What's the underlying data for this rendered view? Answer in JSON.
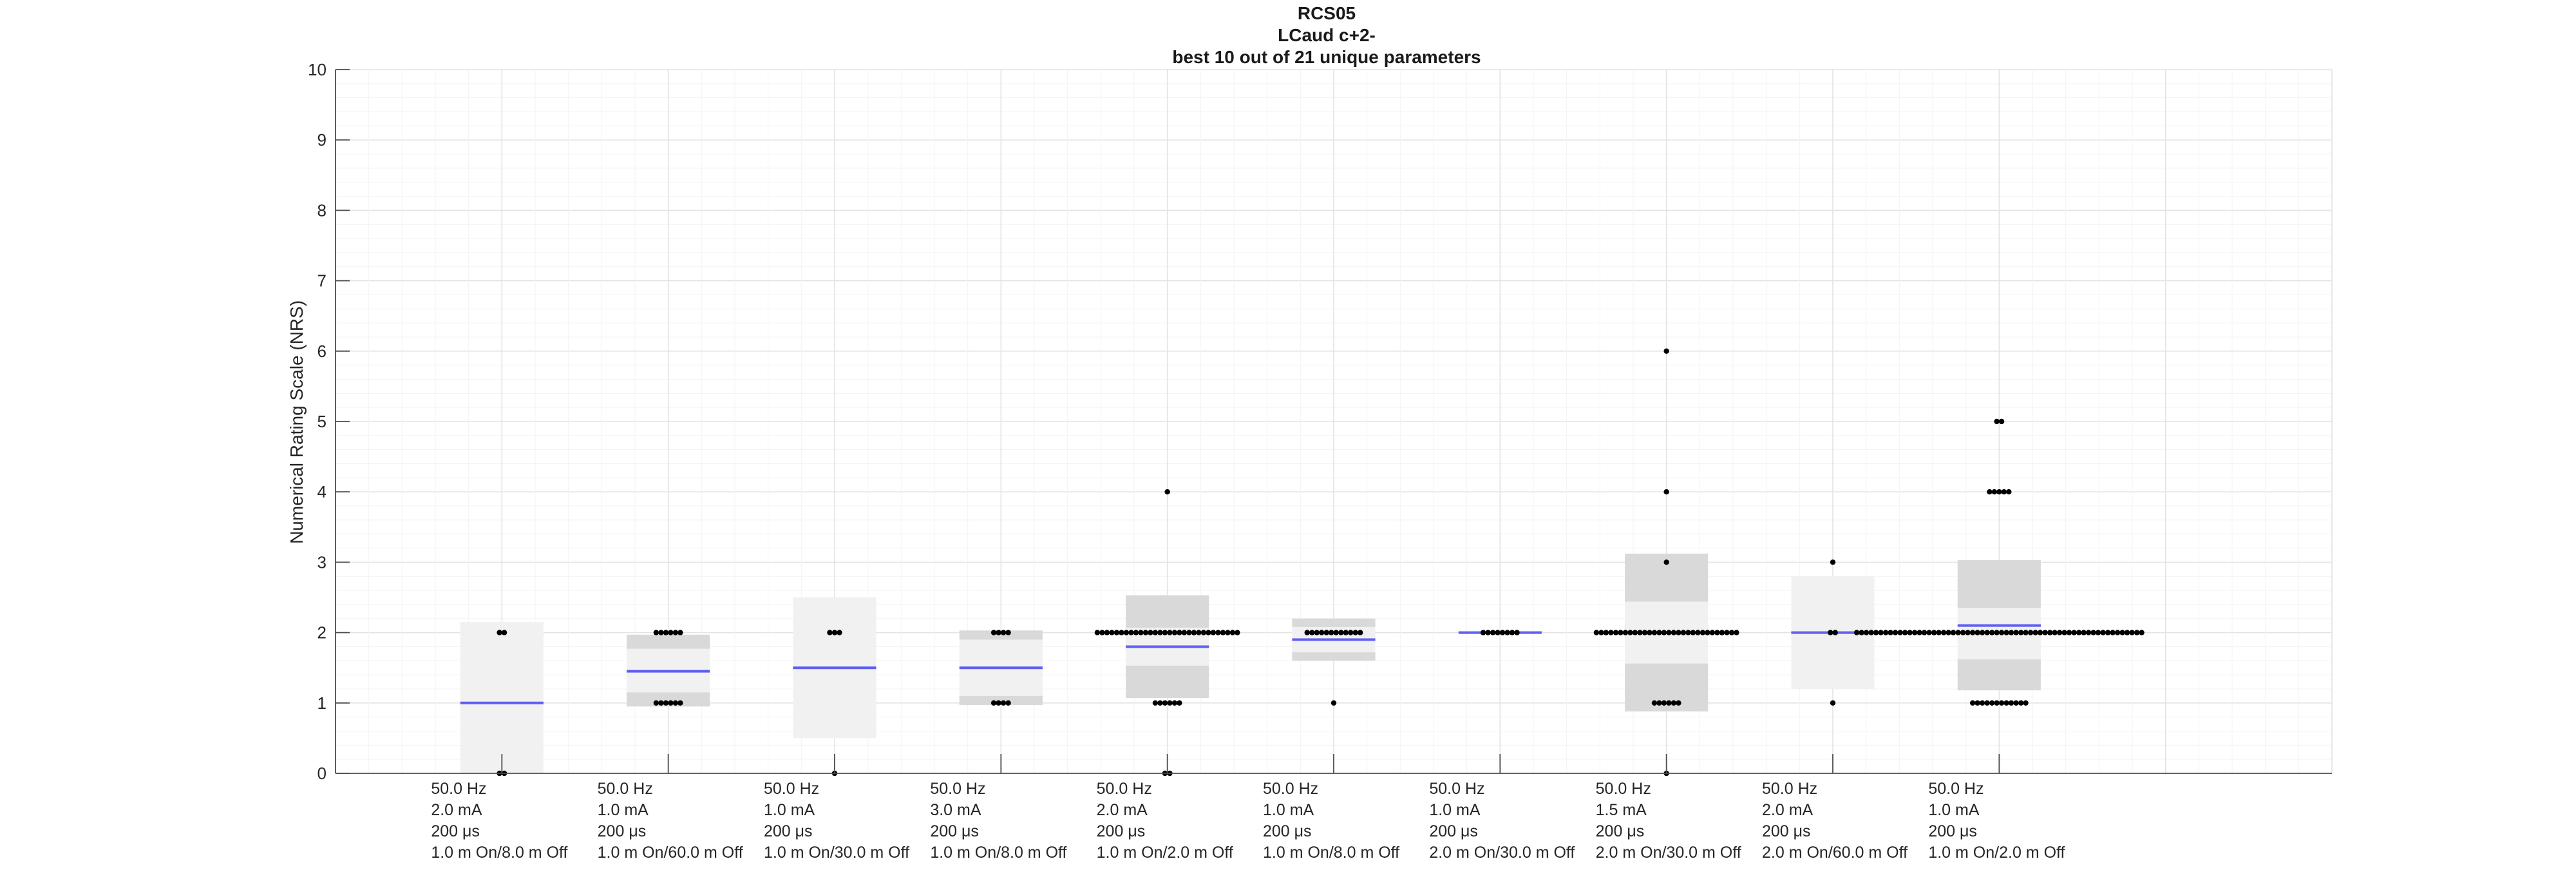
{
  "chart_data": {
    "type": "box",
    "title": [
      "RCS05",
      "LCaud c+2-",
      "best 10 out of 21 unique parameters"
    ],
    "ylabel": "Numerical Rating Scale (NRS)",
    "ylim": [
      0,
      10
    ],
    "yticks": [
      "0",
      "1",
      "2",
      "3",
      "4",
      "5",
      "6",
      "7",
      "8",
      "9",
      "10"
    ],
    "xlim": [
      0,
      12
    ],
    "grid": true,
    "categories": [
      [
        "50.0 Hz",
        "2.0 mA",
        "200 μs",
        "1.0 m On/8.0 m Off"
      ],
      [
        "50.0 Hz",
        "1.0 mA",
        "200 μs",
        "1.0 m On/60.0 m Off"
      ],
      [
        "50.0 Hz",
        "1.0 mA",
        "200 μs",
        "1.0 m On/30.0 m Off"
      ],
      [
        "50.0 Hz",
        "3.0 mA",
        "200 μs",
        "1.0 m On/8.0 m Off"
      ],
      [
        "50.0 Hz",
        "2.0 mA",
        "200 μs",
        "1.0 m On/2.0 m Off"
      ],
      [
        "50.0 Hz",
        "1.0 mA",
        "200 μs",
        "1.0 m On/8.0 m Off"
      ],
      [
        "50.0 Hz",
        "1.0 mA",
        "200 μs",
        "2.0 m On/30.0 m Off"
      ],
      [
        "50.0 Hz",
        "1.5 mA",
        "200 μs",
        "2.0 m On/30.0 m Off"
      ],
      [
        "50.0 Hz",
        "2.0 mA",
        "200 μs",
        "2.0 m On/60.0 m Off"
      ],
      [
        "50.0 Hz",
        "1.0 mA",
        "200 μs",
        "1.0 m On/2.0 m Off"
      ]
    ],
    "boxes": [
      {
        "mean": 1.0,
        "ci": [
          0.0,
          2.15
        ],
        "sd": null,
        "points": [
          {
            "y": 2,
            "n": 2
          },
          {
            "y": 0,
            "n": 2
          }
        ]
      },
      {
        "mean": 1.45,
        "ci": [
          0.95,
          1.97
        ],
        "sd": [
          1.15,
          1.77
        ],
        "points": [
          {
            "y": 2,
            "n": 6
          },
          {
            "y": 1,
            "n": 6
          }
        ]
      },
      {
        "mean": 1.5,
        "ci": [
          0.5,
          2.5
        ],
        "sd": null,
        "points": [
          {
            "y": 2,
            "n": 3
          },
          {
            "y": 0,
            "n": 1
          }
        ]
      },
      {
        "mean": 1.5,
        "ci": [
          0.97,
          2.03
        ],
        "sd": [
          1.1,
          1.9
        ],
        "points": [
          {
            "y": 2,
            "n": 4
          },
          {
            "y": 1,
            "n": 4
          }
        ]
      },
      {
        "mean": 1.8,
        "ci": [
          1.07,
          2.53
        ],
        "sd": [
          1.53,
          2.07
        ],
        "points": [
          {
            "y": 4,
            "n": 1
          },
          {
            "y": 2,
            "n": 30
          },
          {
            "y": 1,
            "n": 6
          },
          {
            "y": 0,
            "n": 2
          }
        ]
      },
      {
        "mean": 1.9,
        "ci": [
          1.6,
          2.2
        ],
        "sd": [
          1.72,
          2.08
        ],
        "points": [
          {
            "y": 2,
            "n": 12
          },
          {
            "y": 1,
            "n": 1
          }
        ]
      },
      {
        "mean": 2.0,
        "ci": [
          2.0,
          2.0
        ],
        "sd": null,
        "points": [
          {
            "y": 2,
            "n": 8
          }
        ]
      },
      {
        "mean": 2.0,
        "ci": [
          0.88,
          3.12
        ],
        "sd": [
          1.56,
          2.44
        ],
        "points": [
          {
            "y": 6,
            "n": 1
          },
          {
            "y": 4,
            "n": 1
          },
          {
            "y": 3,
            "n": 1
          },
          {
            "y": 2,
            "n": 30
          },
          {
            "y": 1,
            "n": 6
          },
          {
            "y": 0,
            "n": 1
          }
        ]
      },
      {
        "mean": 2.0,
        "ci": [
          1.2,
          2.8
        ],
        "sd": null,
        "points": [
          {
            "y": 3,
            "n": 1
          },
          {
            "y": 2,
            "n": 2
          },
          {
            "y": 1,
            "n": 1
          }
        ]
      },
      {
        "mean": 2.1,
        "ci": [
          1.18,
          3.03
        ],
        "sd": [
          1.62,
          2.35
        ],
        "points": [
          {
            "y": 5,
            "n": 2
          },
          {
            "y": 4,
            "n": 5
          },
          {
            "y": 2,
            "n": 60
          },
          {
            "y": 1,
            "n": 12
          }
        ]
      }
    ],
    "colors": {
      "mean": "#5e5ef2",
      "ci": "#f1f1f1",
      "sd": "#d9d9d9",
      "points": "#000000",
      "grid": "#ececec",
      "axis": "#4d4d4d"
    }
  }
}
